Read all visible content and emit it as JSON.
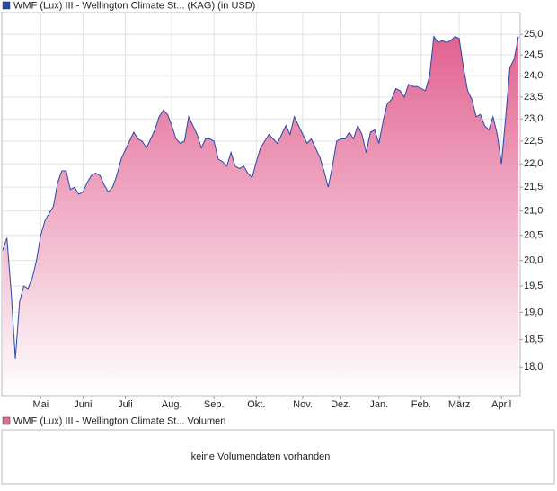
{
  "chart_data": [
    {
      "type": "line",
      "log_scale": true,
      "grid": true,
      "series": [
        {
          "name": "WMF (Lux) III - Wellington Climate St... (KAG) (in USD)",
          "color": "#2747a8",
          "area_color": "#e0588a",
          "values": [
            20.2,
            20.45,
            19.4,
            18.15,
            19.2,
            19.5,
            19.45,
            19.65,
            20.0,
            20.5,
            20.8,
            20.95,
            21.1,
            21.6,
            21.85,
            21.85,
            21.45,
            21.5,
            21.35,
            21.4,
            21.6,
            21.75,
            21.8,
            21.75,
            21.55,
            21.4,
            21.5,
            21.75,
            22.1,
            22.3,
            22.5,
            22.7,
            22.55,
            22.5,
            22.35,
            22.55,
            22.75,
            23.05,
            23.2,
            23.1,
            22.85,
            22.55,
            22.45,
            22.5,
            23.05,
            22.85,
            22.65,
            22.35,
            22.55,
            22.55,
            22.5,
            22.1,
            22.05,
            21.95,
            22.25,
            21.95,
            21.9,
            21.95,
            21.8,
            21.7,
            22.05,
            22.35,
            22.5,
            22.65,
            22.55,
            22.45,
            22.65,
            22.85,
            22.65,
            23.05,
            22.85,
            22.65,
            22.45,
            22.55,
            22.35,
            22.15,
            21.85,
            21.5,
            21.95,
            22.5,
            22.55,
            22.55,
            22.7,
            22.55,
            22.85,
            22.65,
            22.25,
            22.7,
            22.75,
            22.45,
            22.95,
            23.35,
            23.45,
            23.7,
            23.65,
            23.5,
            23.8,
            23.75,
            23.75,
            23.7,
            23.65,
            24.0,
            24.95,
            24.8,
            24.85,
            24.8,
            24.85,
            24.95,
            24.9,
            24.2,
            23.65,
            23.45,
            23.05,
            23.1,
            22.85,
            22.75,
            23.05,
            22.65,
            22.0,
            23.05,
            24.2,
            24.4,
            24.95
          ]
        }
      ],
      "categories": [
        null,
        null,
        null,
        null,
        null,
        null,
        null,
        null,
        null,
        "Mai",
        null,
        null,
        null,
        null,
        null,
        null,
        null,
        null,
        null,
        "Juni",
        null,
        null,
        null,
        null,
        null,
        null,
        null,
        null,
        null,
        "Juli",
        null,
        null,
        null,
        null,
        null,
        null,
        null,
        null,
        null,
        null,
        "Aug.",
        null,
        null,
        null,
        null,
        null,
        null,
        null,
        null,
        null,
        "Sep.",
        null,
        null,
        null,
        null,
        null,
        null,
        null,
        null,
        null,
        "Okt.",
        null,
        null,
        null,
        null,
        null,
        null,
        null,
        null,
        null,
        null,
        "Nov.",
        null,
        null,
        null,
        null,
        null,
        null,
        null,
        null,
        "Dez.",
        null,
        null,
        null,
        null,
        null,
        null,
        null,
        null,
        "Jan.",
        null,
        null,
        null,
        null,
        null,
        null,
        null,
        null,
        null,
        "Feb.",
        null,
        null,
        null,
        null,
        null,
        null,
        null,
        null,
        "März",
        null,
        null,
        null,
        null,
        null,
        null,
        null,
        null,
        null,
        "April",
        null,
        null,
        null,
        null
      ],
      "ylim": [
        17.5,
        25.5
      ],
      "yticks": [
        {
          "value": 18.0,
          "label": "18,0"
        },
        {
          "value": 18.5,
          "label": "18,5"
        },
        {
          "value": 19.0,
          "label": "19,0"
        },
        {
          "value": 19.5,
          "label": "19,5"
        },
        {
          "value": 20.0,
          "label": "20,0"
        },
        {
          "value": 20.5,
          "label": "20,5"
        },
        {
          "value": 21.0,
          "label": "21,0"
        },
        {
          "value": 21.5,
          "label": "21,5"
        },
        {
          "value": 22.0,
          "label": "22,0"
        },
        {
          "value": 22.5,
          "label": "22,5"
        },
        {
          "value": 23.0,
          "label": "23,0"
        },
        {
          "value": 23.5,
          "label": "23,5"
        },
        {
          "value": 24.0,
          "label": "24,0"
        },
        {
          "value": 24.5,
          "label": "24,5"
        },
        {
          "value": 25.0,
          "label": "25,0"
        }
      ]
    },
    {
      "type": "bar",
      "series": [
        {
          "name": "WMF (Lux) III - Wellington Climate St... Volumen",
          "color": "#d8728f",
          "values": []
        }
      ],
      "message": "keine Volumendaten vorhanden"
    }
  ]
}
